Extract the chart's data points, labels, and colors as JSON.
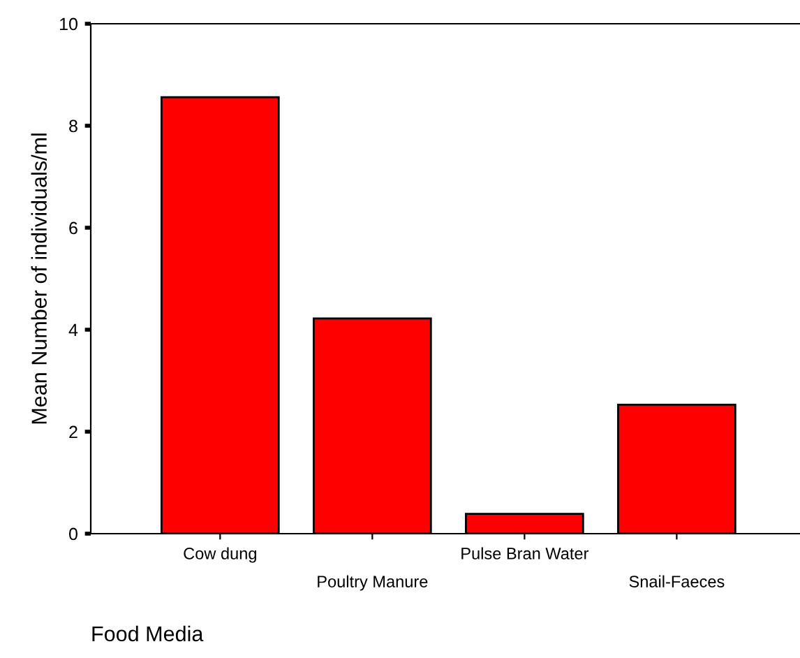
{
  "chart_data": {
    "type": "bar",
    "xlabel": "Food Media",
    "ylabel": "Mean Number of individuals/ml",
    "categories": [
      "Cow dung",
      "Poultry Manure",
      "Pulse Bran Water",
      "Snail-Faeces"
    ],
    "values": [
      8.56,
      4.22,
      0.39,
      2.53
    ],
    "color": "#ff0000",
    "ylim": [
      0,
      10
    ],
    "yticks": [
      0,
      2,
      4,
      6,
      8,
      10
    ],
    "grid": false
  }
}
